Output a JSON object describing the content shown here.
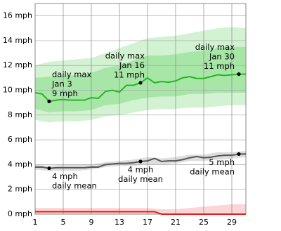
{
  "chart_data": {
    "type": "line",
    "x": [
      1,
      2,
      3,
      4,
      5,
      6,
      7,
      8,
      9,
      10,
      11,
      12,
      13,
      14,
      15,
      16,
      17,
      18,
      19,
      20,
      21,
      22,
      23,
      24,
      25,
      26,
      27,
      28,
      29,
      30,
      31
    ],
    "xlim": [
      1,
      31
    ],
    "xticks": [
      1,
      5,
      9,
      13,
      17,
      21,
      25,
      29
    ],
    "ylim": [
      0,
      17
    ],
    "yticks": [
      {
        "value": 0,
        "label": "0 mph"
      },
      {
        "value": 2,
        "label": "2 mph"
      },
      {
        "value": 4,
        "label": "4 mph"
      },
      {
        "value": 6,
        "label": "6 mph"
      },
      {
        "value": 8,
        "label": "8 mph"
      },
      {
        "value": 10,
        "label": "10 mph"
      },
      {
        "value": 12,
        "label": "12 mph"
      },
      {
        "value": 14,
        "label": "14 mph"
      },
      {
        "value": 16,
        "label": "16 mph"
      }
    ],
    "grid": true,
    "series": [
      {
        "color": "#22b822",
        "values": [
          9.8,
          9.7,
          9.1,
          9.2,
          9.25,
          9.2,
          9.2,
          9.2,
          9.4,
          9.35,
          9.9,
          10.0,
          9.85,
          10.4,
          10.4,
          10.6,
          11.0,
          10.6,
          10.7,
          10.65,
          10.75,
          11.0,
          11.1,
          10.95,
          10.95,
          11.1,
          11.25,
          11.2,
          11.25,
          11.3,
          11.3
        ]
      },
      {
        "color": "#555555",
        "values": [
          3.8,
          3.8,
          3.7,
          3.75,
          3.75,
          3.75,
          3.75,
          3.75,
          3.8,
          3.8,
          4.0,
          4.05,
          4.1,
          4.1,
          4.15,
          4.25,
          4.3,
          4.5,
          4.25,
          4.3,
          4.3,
          4.4,
          4.55,
          4.65,
          4.55,
          4.6,
          4.7,
          4.75,
          4.75,
          4.85,
          4.85
        ]
      },
      {
        "color": "#e02020",
        "values": [
          0.2,
          0.2,
          0.2,
          0.2,
          0.2,
          0.2,
          0.2,
          0.2,
          0.2,
          0.2,
          0.2,
          0.2,
          0.2,
          0.2,
          0.2,
          0.2,
          0.2,
          0.2,
          0,
          0,
          0,
          0,
          0,
          0,
          0,
          0,
          0,
          0,
          0,
          0,
          0
        ]
      }
    ],
    "bands": [
      {
        "color": "#d2f2d2",
        "x": [
          1,
          3,
          5,
          7,
          9,
          11,
          13,
          15,
          17,
          19,
          21,
          23,
          25,
          27,
          29,
          31
        ],
        "high": [
          12.0,
          12.3,
          12.4,
          12.5,
          12.6,
          13.0,
          13.4,
          13.8,
          14.2,
          14.3,
          14.4,
          14.6,
          14.8,
          15.0,
          15.1,
          15.0
        ],
        "low": [
          7.6,
          7.4,
          7.5,
          7.5,
          7.6,
          7.9,
          8.0,
          8.2,
          8.4,
          8.5,
          8.5,
          8.6,
          8.6,
          8.7,
          8.8,
          8.8
        ]
      },
      {
        "color": "#a8e6a8",
        "x": [
          1,
          3,
          5,
          7,
          9,
          11,
          13,
          15,
          17,
          19,
          21,
          23,
          25,
          27,
          29,
          31
        ],
        "high": [
          11.0,
          11.1,
          11.2,
          11.2,
          11.4,
          11.8,
          12.0,
          12.4,
          12.8,
          12.8,
          12.9,
          13.1,
          13.2,
          13.4,
          13.5,
          13.5
        ],
        "low": [
          8.5,
          8.2,
          8.3,
          8.3,
          8.4,
          8.8,
          8.9,
          9.2,
          9.4,
          9.5,
          9.5,
          9.7,
          9.7,
          9.8,
          9.8,
          9.8
        ]
      },
      {
        "color": "#dddddd",
        "x": [
          1,
          3,
          5,
          7,
          9,
          11,
          13,
          15,
          17,
          19,
          21,
          23,
          25,
          27,
          29,
          31
        ],
        "high": [
          4.0,
          3.9,
          4.0,
          4.0,
          4.0,
          4.2,
          4.3,
          4.4,
          4.6,
          4.5,
          4.6,
          4.8,
          4.8,
          5.0,
          5.0,
          5.1
        ],
        "low": [
          3.6,
          3.5,
          3.5,
          3.5,
          3.6,
          3.8,
          3.9,
          3.9,
          4.0,
          4.0,
          4.1,
          4.3,
          4.3,
          4.4,
          4.5,
          4.6
        ]
      },
      {
        "color": "#fbd6d6",
        "x": [
          1,
          3,
          5,
          7,
          9,
          11,
          13,
          15,
          17,
          19,
          21,
          23,
          25,
          27,
          29,
          31
        ],
        "high": [
          0.5,
          0.5,
          0.5,
          0.5,
          0.5,
          0.5,
          0.5,
          0.5,
          0.5,
          0.4,
          0.4,
          0.5,
          0.6,
          0.7,
          0.8,
          0.8
        ],
        "low": [
          0,
          0,
          0,
          0,
          0,
          0,
          0,
          0,
          0,
          0,
          0,
          0,
          0,
          0,
          0,
          0
        ]
      }
    ],
    "annotations": [
      {
        "series": 0,
        "x": 3,
        "lines": [
          "daily max",
          "Jan 3",
          "9 mph"
        ]
      },
      {
        "series": 0,
        "x": 16,
        "lines": [
          "daily max",
          "Jan 16",
          "11 mph"
        ]
      },
      {
        "series": 0,
        "x": 30,
        "lines": [
          "daily max",
          "Jan 30",
          "11 mph"
        ]
      },
      {
        "series": 1,
        "x": 3,
        "lines": [
          "4 mph",
          "daily mean"
        ]
      },
      {
        "series": 1,
        "x": 16,
        "lines": [
          "4 mph",
          "daily mean"
        ]
      },
      {
        "series": 1,
        "x": 30,
        "lines": [
          "5 mph",
          "daily mean"
        ]
      }
    ]
  }
}
